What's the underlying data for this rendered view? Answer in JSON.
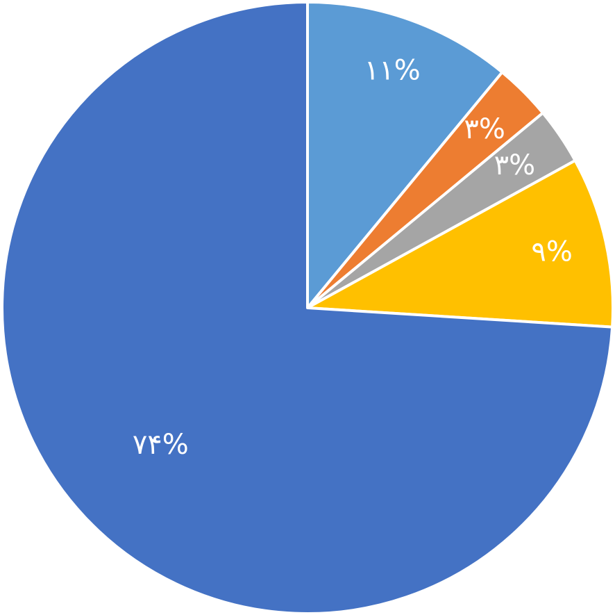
{
  "chart_data": {
    "type": "pie",
    "values": [
      11,
      3,
      3,
      9,
      74
    ],
    "value_labels": [
      "۱۱%",
      "۳%",
      "۳%",
      "۹%",
      "۷۴%"
    ],
    "colors": [
      "#5b9bd5",
      "#ed7d31",
      "#a5a5a5",
      "#ffc000",
      "#4472c4"
    ]
  }
}
